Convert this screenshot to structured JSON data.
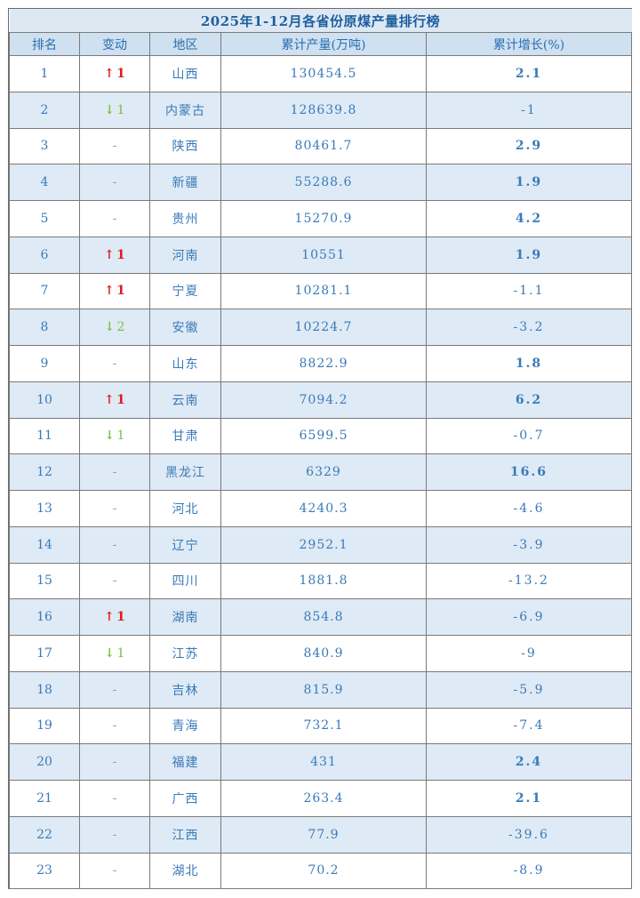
{
  "title": "2025年1-12月各省份原煤产量排行榜",
  "headers": {
    "rank": "排名",
    "change": "变动",
    "region": "地区",
    "production": "累计产量(万吨)",
    "growth": "累计增长(%)"
  },
  "colors": {
    "up": "#e11b1b",
    "down": "#7cbf3f",
    "text": "#3a7ab8",
    "alt_row": "#deeaf5"
  },
  "rows": [
    {
      "rank": "1",
      "dir": "up",
      "change": "1",
      "region": "山西",
      "production": "130454.5",
      "growth": "2.1",
      "growth_sign": "pos"
    },
    {
      "rank": "2",
      "dir": "down",
      "change": "1",
      "region": "内蒙古",
      "production": "128639.8",
      "growth": "-1",
      "growth_sign": "neg"
    },
    {
      "rank": "3",
      "dir": "none",
      "change": "-",
      "region": "陕西",
      "production": "80461.7",
      "growth": "2.9",
      "growth_sign": "pos"
    },
    {
      "rank": "4",
      "dir": "none",
      "change": "-",
      "region": "新疆",
      "production": "55288.6",
      "growth": "1.9",
      "growth_sign": "pos"
    },
    {
      "rank": "5",
      "dir": "none",
      "change": "-",
      "region": "贵州",
      "production": "15270.9",
      "growth": "4.2",
      "growth_sign": "pos"
    },
    {
      "rank": "6",
      "dir": "up",
      "change": "1",
      "region": "河南",
      "production": "10551",
      "growth": "1.9",
      "growth_sign": "pos"
    },
    {
      "rank": "7",
      "dir": "up",
      "change": "1",
      "region": "宁夏",
      "production": "10281.1",
      "growth": "-1.1",
      "growth_sign": "neg"
    },
    {
      "rank": "8",
      "dir": "down",
      "change": "2",
      "region": "安徽",
      "production": "10224.7",
      "growth": "-3.2",
      "growth_sign": "neg"
    },
    {
      "rank": "9",
      "dir": "none",
      "change": "-",
      "region": "山东",
      "production": "8822.9",
      "growth": "1.8",
      "growth_sign": "pos"
    },
    {
      "rank": "10",
      "dir": "up",
      "change": "1",
      "region": "云南",
      "production": "7094.2",
      "growth": "6.2",
      "growth_sign": "pos"
    },
    {
      "rank": "11",
      "dir": "down",
      "change": "1",
      "region": "甘肃",
      "production": "6599.5",
      "growth": "-0.7",
      "growth_sign": "neg"
    },
    {
      "rank": "12",
      "dir": "none",
      "change": "-",
      "region": "黑龙江",
      "production": "6329",
      "growth": "16.6",
      "growth_sign": "pos"
    },
    {
      "rank": "13",
      "dir": "none",
      "change": "-",
      "region": "河北",
      "production": "4240.3",
      "growth": "-4.6",
      "growth_sign": "neg"
    },
    {
      "rank": "14",
      "dir": "none",
      "change": "-",
      "region": "辽宁",
      "production": "2952.1",
      "growth": "-3.9",
      "growth_sign": "neg"
    },
    {
      "rank": "15",
      "dir": "none",
      "change": "-",
      "region": "四川",
      "production": "1881.8",
      "growth": "-13.2",
      "growth_sign": "neg"
    },
    {
      "rank": "16",
      "dir": "up",
      "change": "1",
      "region": "湖南",
      "production": "854.8",
      "growth": "-6.9",
      "growth_sign": "neg"
    },
    {
      "rank": "17",
      "dir": "down",
      "change": "1",
      "region": "江苏",
      "production": "840.9",
      "growth": "-9",
      "growth_sign": "neg"
    },
    {
      "rank": "18",
      "dir": "none",
      "change": "-",
      "region": "吉林",
      "production": "815.9",
      "growth": "-5.9",
      "growth_sign": "neg"
    },
    {
      "rank": "19",
      "dir": "none",
      "change": "-",
      "region": "青海",
      "production": "732.1",
      "growth": "-7.4",
      "growth_sign": "neg"
    },
    {
      "rank": "20",
      "dir": "none",
      "change": "-",
      "region": "福建",
      "production": "431",
      "growth": "2.4",
      "growth_sign": "pos"
    },
    {
      "rank": "21",
      "dir": "none",
      "change": "-",
      "region": "广西",
      "production": "263.4",
      "growth": "2.1",
      "growth_sign": "pos"
    },
    {
      "rank": "22",
      "dir": "none",
      "change": "-",
      "region": "江西",
      "production": "77.9",
      "growth": "-39.6",
      "growth_sign": "neg"
    },
    {
      "rank": "23",
      "dir": "none",
      "change": "-",
      "region": "湖北",
      "production": "70.2",
      "growth": "-8.9",
      "growth_sign": "neg"
    }
  ]
}
